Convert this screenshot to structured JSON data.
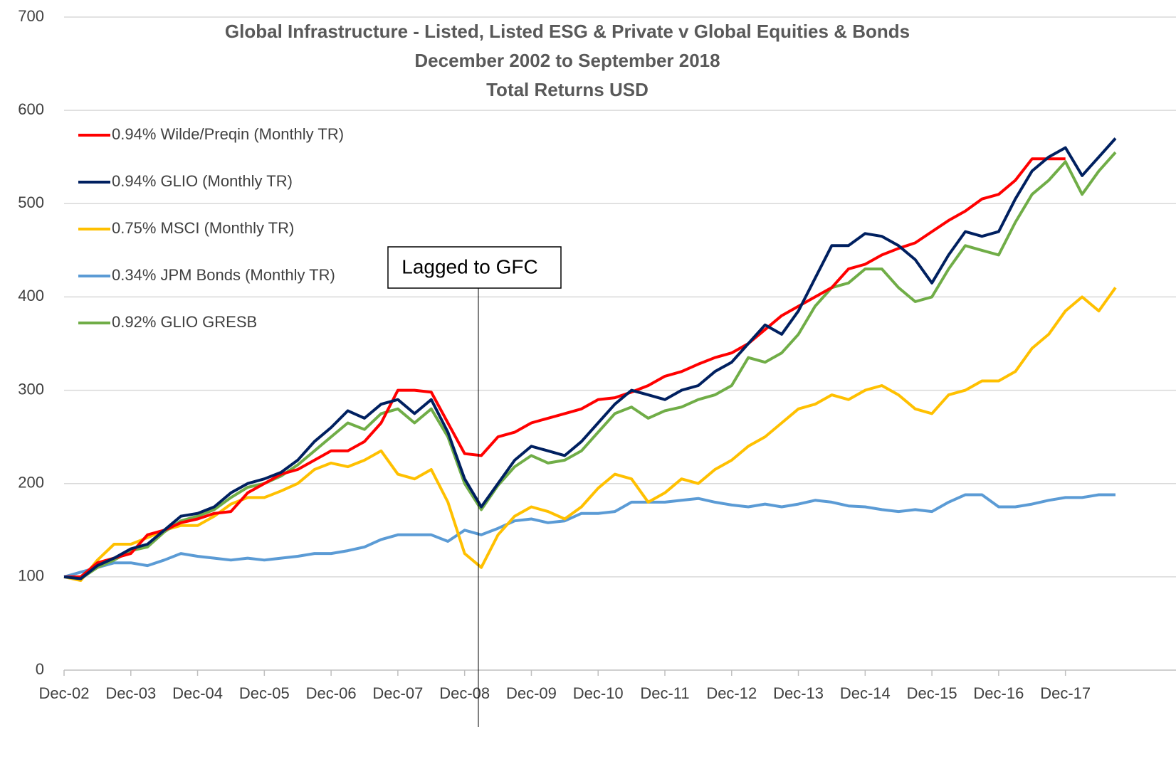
{
  "chart_data": {
    "type": "line",
    "title": "Global Infrastructure - Listed, Listed ESG & Private v Global Equities & Bonds",
    "subtitle": "December 2002 to September 2018",
    "subtitle2": "Total Returns USD",
    "annotation": "Lagged to GFC",
    "categories": [
      "Dec-02",
      null,
      null,
      null,
      "Dec-03",
      null,
      null,
      null,
      "Dec-04",
      null,
      null,
      null,
      "Dec-05",
      null,
      null,
      null,
      "Dec-06",
      null,
      null,
      null,
      "Dec-07",
      null,
      null,
      null,
      "Dec-08",
      null,
      null,
      null,
      "Dec-09",
      null,
      null,
      null,
      "Dec-10",
      null,
      null,
      null,
      "Dec-11",
      null,
      null,
      null,
      "Dec-12",
      null,
      null,
      null,
      "Dec-13",
      null,
      null,
      null,
      "Dec-14",
      null,
      null,
      null,
      "Dec-15",
      null,
      null,
      null,
      "Dec-16",
      null,
      null,
      null,
      "Dec-17",
      null,
      null,
      null
    ],
    "ylim": [
      0,
      700
    ],
    "yticks": [
      0,
      100,
      200,
      300,
      400,
      500,
      600,
      700
    ],
    "grid": true,
    "legend": "upper-left",
    "series": [
      {
        "name": "0.94% Wilde/Preqin (Monthly TR)",
        "color": "#ff0000",
        "values": [
          100,
          100,
          115,
          120,
          125,
          145,
          150,
          158,
          162,
          168,
          170,
          190,
          200,
          210,
          215,
          225,
          235,
          235,
          245,
          265,
          300,
          300,
          298,
          265,
          232,
          230,
          250,
          255,
          265,
          270,
          275,
          280,
          290,
          292,
          298,
          305,
          315,
          320,
          328,
          335,
          340,
          350,
          365,
          380,
          390,
          400,
          410,
          430,
          435,
          445,
          452,
          458,
          470,
          482,
          492,
          505,
          510,
          525,
          548,
          548,
          548,
          null,
          null,
          null
        ]
      },
      {
        "name": "0.94% GLIO (Monthly TR)",
        "color": "#002060",
        "values": [
          100,
          98,
          112,
          120,
          130,
          135,
          150,
          165,
          168,
          175,
          190,
          200,
          205,
          212,
          225,
          245,
          260,
          278,
          270,
          285,
          290,
          275,
          290,
          255,
          205,
          175,
          200,
          225,
          240,
          235,
          230,
          245,
          265,
          285,
          300,
          295,
          290,
          300,
          305,
          320,
          330,
          350,
          370,
          360,
          385,
          420,
          455,
          455,
          468,
          465,
          455,
          440,
          415,
          445,
          470,
          465,
          470,
          505,
          535,
          550,
          560,
          530,
          550,
          570
        ]
      },
      {
        "name": "0.75% MSCI (Monthly TR)",
        "color": "#ffc000",
        "values": [
          100,
          96,
          118,
          135,
          135,
          142,
          150,
          155,
          155,
          165,
          178,
          185,
          185,
          192,
          200,
          215,
          222,
          218,
          225,
          235,
          210,
          205,
          215,
          180,
          125,
          110,
          145,
          165,
          175,
          170,
          162,
          175,
          195,
          210,
          205,
          180,
          190,
          205,
          200,
          215,
          225,
          240,
          250,
          265,
          280,
          285,
          295,
          290,
          300,
          305,
          295,
          280,
          275,
          295,
          300,
          310,
          310,
          320,
          345,
          360,
          385,
          400,
          385,
          410
        ]
      },
      {
        "name": "0.34% JPM Bonds (Monthly TR)",
        "color": "#5b9bd5",
        "values": [
          100,
          105,
          110,
          115,
          115,
          112,
          118,
          125,
          122,
          120,
          118,
          120,
          118,
          120,
          122,
          125,
          125,
          128,
          132,
          140,
          145,
          145,
          145,
          138,
          150,
          145,
          152,
          160,
          162,
          158,
          160,
          168,
          168,
          170,
          180,
          180,
          180,
          182,
          184,
          180,
          177,
          175,
          178,
          175,
          178,
          182,
          180,
          176,
          175,
          172,
          170,
          172,
          170,
          180,
          188,
          188,
          175,
          175,
          178,
          182,
          185,
          185,
          188,
          188
        ]
      },
      {
        "name": "0.92% GLIO GRESB",
        "color": "#70ad47",
        "values": [
          100,
          98,
          110,
          118,
          128,
          132,
          148,
          160,
          165,
          172,
          185,
          196,
          200,
          208,
          220,
          235,
          250,
          265,
          258,
          275,
          280,
          265,
          280,
          250,
          200,
          172,
          198,
          218,
          230,
          222,
          225,
          235,
          255,
          275,
          282,
          270,
          278,
          282,
          290,
          295,
          305,
          335,
          330,
          340,
          360,
          390,
          410,
          415,
          430,
          430,
          410,
          395,
          400,
          430,
          455,
          450,
          445,
          480,
          510,
          525,
          545,
          510,
          535,
          555
        ]
      }
    ]
  }
}
